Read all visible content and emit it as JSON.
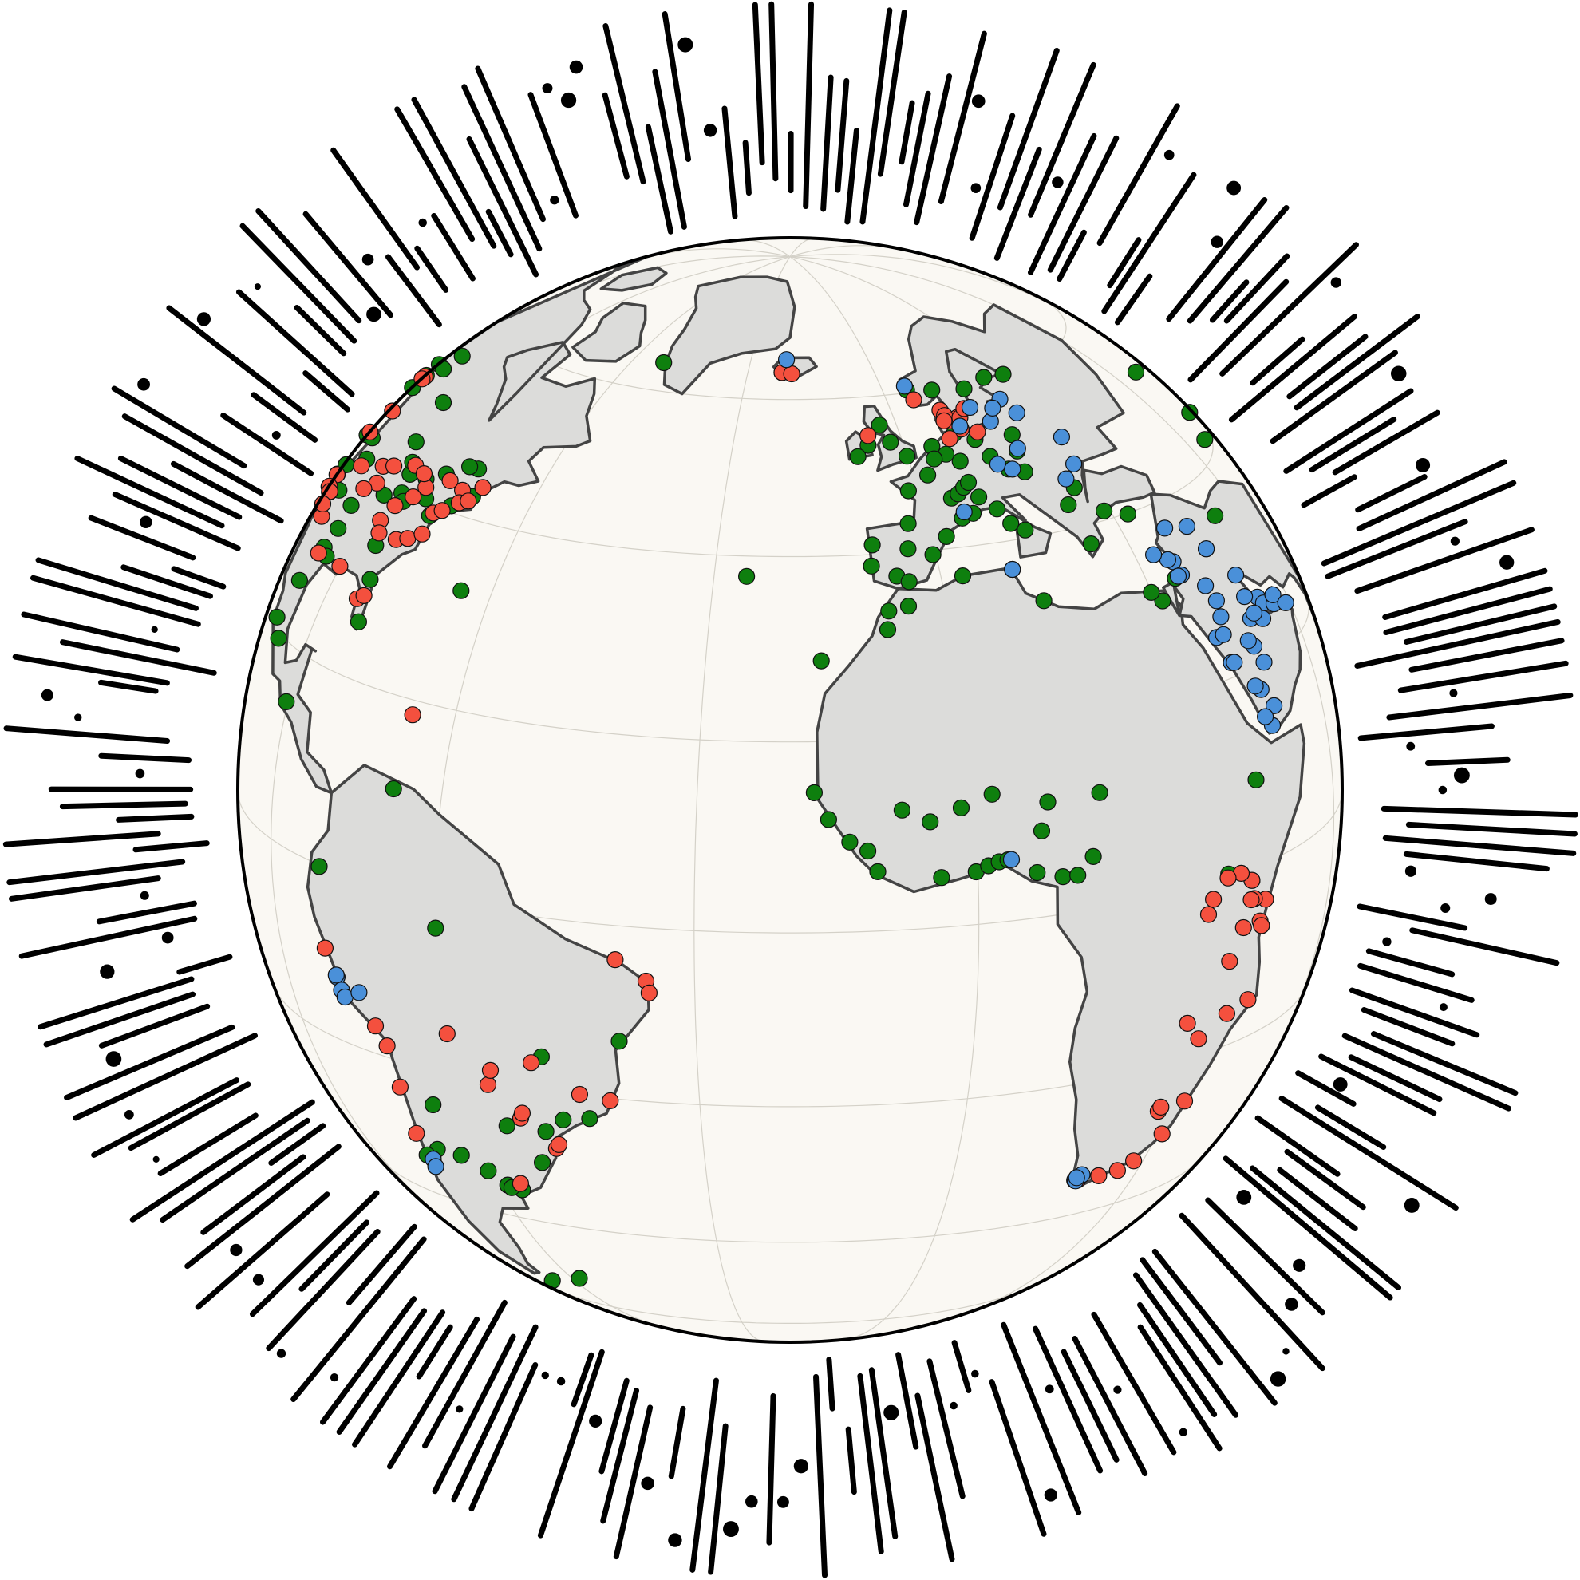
{
  "map": {
    "projection": "orthographic",
    "center": {
      "lon": -20,
      "lat": 15
    },
    "ocean_color": "#faf8f3",
    "land_color": "#dcdcda",
    "coast_color": "#444444",
    "ray_color": "#000000"
  },
  "legend_colors": {
    "red": "#f4503e",
    "green": "#0e7f0e",
    "blue": "#4a90d9"
  },
  "points": {
    "green": [
      [
        -122.4,
        47.6
      ],
      [
        -122.7,
        45.5
      ],
      [
        -121.5,
        38.6
      ],
      [
        -118.2,
        34.1
      ],
      [
        -117.2,
        32.7
      ],
      [
        -112.1,
        33.4
      ],
      [
        -111.9,
        40.8
      ],
      [
        -104.9,
        39.7
      ],
      [
        -97.7,
        30.3
      ],
      [
        -96.8,
        32.8
      ],
      [
        -95.4,
        29.8
      ],
      [
        -90.2,
        38.6
      ],
      [
        -87.6,
        41.9
      ],
      [
        -83.0,
        42.3
      ],
      [
        -93.3,
        45.0
      ],
      [
        -97.5,
        35.5
      ],
      [
        -106.6,
        35.1
      ],
      [
        -84.4,
        33.7
      ],
      [
        -81.7,
        30.3
      ],
      [
        -80.2,
        25.8
      ],
      [
        -77.0,
        38.9
      ],
      [
        -74.0,
        40.7
      ],
      [
        -71.1,
        42.4
      ],
      [
        -79.4,
        43.7
      ],
      [
        -73.6,
        45.5
      ],
      [
        -75.7,
        45.4
      ],
      [
        -89.4,
        43.1
      ],
      [
        -86.2,
        39.8
      ],
      [
        -84.5,
        39.1
      ],
      [
        -80.0,
        40.4
      ],
      [
        -115.1,
        36.2
      ],
      [
        -123.1,
        49.3
      ],
      [
        -114.1,
        51.0
      ],
      [
        -113.5,
        53.5
      ],
      [
        -97.1,
        49.9
      ],
      [
        -99.1,
        19.4
      ],
      [
        -103.3,
        20.7
      ],
      [
        -100.3,
        25.7
      ],
      [
        -90.5,
        14.6
      ],
      [
        -64.8,
        32.3
      ],
      [
        -47.9,
        -15.8
      ],
      [
        -38.5,
        -12.9
      ],
      [
        -43.2,
        -22.9
      ],
      [
        -46.6,
        -23.5
      ],
      [
        -51.2,
        -30.0
      ],
      [
        -49.3,
        -25.4
      ],
      [
        -54.6,
        -25.5
      ],
      [
        -56.2,
        -34.9
      ],
      [
        -58.4,
        -34.6
      ],
      [
        -57.9,
        -34.9
      ],
      [
        -60.6,
        -32.9
      ],
      [
        -64.2,
        -31.4
      ],
      [
        -68.5,
        -31.5
      ],
      [
        -65.4,
        -24.8
      ],
      [
        -66.9,
        10.5
      ],
      [
        -70.7,
        -33.4
      ],
      [
        -71.6,
        -33.0
      ],
      [
        -77.0,
        -12.0
      ],
      [
        -78.5,
        -0.2
      ],
      [
        -60.0,
        -3.1
      ],
      [
        -68.3,
        -54.8
      ],
      [
        -58.0,
        -51.7
      ],
      [
        -25.7,
        37.7
      ],
      [
        -16.3,
        28.5
      ],
      [
        -17.4,
        14.7
      ],
      [
        -15.9,
        11.9
      ],
      [
        -13.7,
        9.5
      ],
      [
        -11.8,
        8.5
      ],
      [
        -10.8,
        6.3
      ],
      [
        -8.0,
        12.6
      ],
      [
        -5.0,
        11.2
      ],
      [
        -4.0,
        5.3
      ],
      [
        -1.5,
        12.4
      ],
      [
        -0.2,
        5.6
      ],
      [
        1.2,
        6.1
      ],
      [
        2.4,
        6.4
      ],
      [
        2.1,
        13.5
      ],
      [
        3.4,
        6.5
      ],
      [
        7.5,
        9.1
      ],
      [
        8.5,
        12.0
      ],
      [
        9.7,
        4.0
      ],
      [
        13.5,
        5.6
      ],
      [
        15.0,
        12.1
      ],
      [
        11.5,
        3.9
      ],
      [
        6.7,
        4.8
      ],
      [
        -9.1,
        38.7
      ],
      [
        -8.6,
        41.1
      ],
      [
        -3.7,
        40.4
      ],
      [
        2.2,
        41.4
      ],
      [
        -0.4,
        39.5
      ],
      [
        -5.9,
        37.4
      ],
      [
        -4.4,
        36.7
      ],
      [
        -2.9,
        43.3
      ],
      [
        -1.6,
        47.2
      ],
      [
        2.3,
        48.9
      ],
      [
        4.8,
        45.8
      ],
      [
        5.4,
        43.3
      ],
      [
        7.3,
        43.7
      ],
      [
        6.1,
        46.2
      ],
      [
        7.4,
        46.9
      ],
      [
        8.5,
        47.4
      ],
      [
        9.2,
        45.5
      ],
      [
        11.3,
        43.8
      ],
      [
        12.5,
        41.9
      ],
      [
        14.3,
        40.9
      ],
      [
        16.4,
        48.2
      ],
      [
        14.4,
        50.1
      ],
      [
        13.4,
        52.5
      ],
      [
        10.0,
        53.6
      ],
      [
        8.7,
        50.1
      ],
      [
        6.8,
        51.2
      ],
      [
        4.9,
        52.4
      ],
      [
        4.4,
        50.8
      ],
      [
        -0.1,
        51.5
      ],
      [
        -2.2,
        53.5
      ],
      [
        -3.2,
        55.9
      ],
      [
        -6.3,
        53.3
      ],
      [
        -8.5,
        51.9
      ],
      [
        10.8,
        59.9
      ],
      [
        5.3,
        60.4
      ],
      [
        18.1,
        59.3
      ],
      [
        12.6,
        55.7
      ],
      [
        24.9,
        60.2
      ],
      [
        30.3,
        59.9
      ],
      [
        21.0,
        52.2
      ],
      [
        19.9,
        50.1
      ],
      [
        19.0,
        47.5
      ],
      [
        26.1,
        44.4
      ],
      [
        23.3,
        42.7
      ],
      [
        23.7,
        37.9
      ],
      [
        28.9,
        41.0
      ],
      [
        32.9,
        39.9
      ],
      [
        36.8,
        -1.3
      ],
      [
        39.3,
        -6.8
      ],
      [
        32.6,
        0.3
      ],
      [
        38.7,
        9.0
      ],
      [
        35.2,
        31.8
      ],
      [
        3.0,
        36.8
      ],
      [
        10.2,
        36.8
      ],
      [
        -7.6,
        33.6
      ],
      [
        -5.0,
        34.0
      ],
      [
        -8.0,
        31.6
      ],
      [
        13.2,
        32.9
      ],
      [
        31.2,
        30.0
      ],
      [
        29.9,
        31.2
      ],
      [
        44.4,
        33.3
      ],
      [
        51.4,
        35.7
      ],
      [
        69.2,
        41.3
      ],
      [
        71.4,
        51.2
      ],
      [
        76.9,
        43.2
      ],
      [
        -21.9,
        64.1
      ],
      [
        -51.7,
        64.2
      ]
    ],
    "red": [
      [
        -122.3,
        47.4
      ],
      [
        -122.4,
        37.8
      ],
      [
        -121.9,
        37.3
      ],
      [
        -118.3,
        34.0
      ],
      [
        -117.1,
        32.8
      ],
      [
        -112.0,
        33.5
      ],
      [
        -104.8,
        38.8
      ],
      [
        -96.7,
        40.8
      ],
      [
        -94.6,
        39.1
      ],
      [
        -93.6,
        41.6
      ],
      [
        -90.1,
        29.9
      ],
      [
        -88.0,
        43.0
      ],
      [
        -85.7,
        38.3
      ],
      [
        -86.8,
        36.2
      ],
      [
        -85.3,
        35.0
      ],
      [
        -82.5,
        27.9
      ],
      [
        -81.4,
        28.5
      ],
      [
        -80.8,
        35.2
      ],
      [
        -78.6,
        35.8
      ],
      [
        -76.3,
        36.8
      ],
      [
        -76.6,
        39.3
      ],
      [
        -75.2,
        39.9
      ],
      [
        -73.8,
        42.7
      ],
      [
        -72.9,
        41.3
      ],
      [
        -71.4,
        41.8
      ],
      [
        -70.3,
        43.7
      ],
      [
        -77.6,
        43.2
      ],
      [
        -81.7,
        41.5
      ],
      [
        -83.0,
        40.0
      ],
      [
        -84.4,
        42.7
      ],
      [
        -97.3,
        37.7
      ],
      [
        -98.5,
        29.4
      ],
      [
        -106.5,
        31.8
      ],
      [
        -110.9,
        32.2
      ],
      [
        -119.8,
        39.5
      ],
      [
        -116.2,
        43.6
      ],
      [
        -122.8,
        46.9
      ],
      [
        -66.1,
        18.5
      ],
      [
        -78.5,
        -9.1
      ],
      [
        -71.5,
        -16.4
      ],
      [
        -70.3,
        -18.5
      ],
      [
        -70.4,
        -23.6
      ],
      [
        -71.3,
        -29.9
      ],
      [
        -60.0,
        -15.0
      ],
      [
        -55.7,
        -20.4
      ],
      [
        -52.3,
        -24.1
      ],
      [
        -54.9,
        -18.5
      ],
      [
        -49.3,
        -16.7
      ],
      [
        -48.5,
        -27.6
      ],
      [
        -48.0,
        -27.0
      ],
      [
        -51.9,
        -23.4
      ],
      [
        -43.9,
        -19.9
      ],
      [
        -40.3,
        -20.3
      ],
      [
        -35.2,
        -5.8
      ],
      [
        -34.9,
        -7.1
      ],
      [
        -38.5,
        -3.7
      ],
      [
        -56.0,
        -33.9
      ],
      [
        39.7,
        -4.0
      ],
      [
        37.4,
        -3.4
      ],
      [
        36.8,
        -1.3
      ],
      [
        34.8,
        -0.1
      ],
      [
        32.5,
        -0.1
      ],
      [
        29.4,
        -3.4
      ],
      [
        33.8,
        -9.5
      ],
      [
        30.1,
        -1.9
      ],
      [
        35.7,
        -6.2
      ],
      [
        38.9,
        -6.2
      ],
      [
        39.3,
        -6.8
      ],
      [
        28.3,
        -15.4
      ],
      [
        31.0,
        -17.8
      ],
      [
        32.6,
        -25.9
      ],
      [
        28.0,
        -26.2
      ],
      [
        28.2,
        -25.7
      ],
      [
        31.0,
        -29.9
      ],
      [
        27.9,
        -33.0
      ],
      [
        25.6,
        -33.9
      ],
      [
        22.4,
        -34.0
      ],
      [
        18.4,
        -33.9
      ],
      [
        18.9,
        -33.9
      ],
      [
        36.8,
        -3.4
      ],
      [
        35.3,
        -15.8
      ],
      [
        39.2,
        -15.1
      ],
      [
        -21.9,
        64.1
      ],
      [
        -19.6,
        63.9
      ],
      [
        9.9,
        57.0
      ],
      [
        10.2,
        56.2
      ],
      [
        12.6,
        55.7
      ],
      [
        11.9,
        54.1
      ],
      [
        10.6,
        55.4
      ],
      [
        9.5,
        55.5
      ],
      [
        13.0,
        55.6
      ],
      [
        15.0,
        56.7
      ],
      [
        14.7,
        53.4
      ],
      [
        8.8,
        53.1
      ],
      [
        5.7,
        58.9
      ],
      [
        -5.9,
        54.6
      ]
    ],
    "blue": [
      [
        -20.9,
        66.2
      ],
      [
        5.3,
        61.0
      ],
      [
        16.4,
        56.7
      ],
      [
        12.0,
        54.5
      ],
      [
        18.6,
        54.4
      ],
      [
        24.1,
        56.9
      ],
      [
        25.3,
        54.7
      ],
      [
        21.0,
        56.0
      ],
      [
        15.0,
        49.0
      ],
      [
        17.1,
        48.1
      ],
      [
        20.3,
        50.4
      ],
      [
        30.5,
        50.4
      ],
      [
        28.9,
        47.0
      ],
      [
        25.6,
        45.6
      ],
      [
        6.0,
        44.0
      ],
      [
        10.2,
        36.8
      ],
      [
        36.3,
        33.5
      ],
      [
        35.5,
        33.9
      ],
      [
        39.2,
        21.5
      ],
      [
        46.7,
        24.7
      ],
      [
        50.6,
        26.2
      ],
      [
        51.5,
        25.3
      ],
      [
        54.4,
        24.5
      ],
      [
        55.3,
        25.3
      ],
      [
        58.4,
        23.6
      ],
      [
        47.9,
        29.4
      ],
      [
        44.4,
        33.3
      ],
      [
        43.1,
        36.3
      ],
      [
        45.4,
        15.4
      ],
      [
        44.0,
        13.6
      ],
      [
        42.9,
        14.8
      ],
      [
        43.5,
        17.6
      ],
      [
        39.8,
        21.4
      ],
      [
        38.1,
        24.5
      ],
      [
        42.5,
        18.2
      ],
      [
        40.5,
        26.3
      ],
      [
        49.6,
        24.0
      ],
      [
        48.0,
        25.0
      ],
      [
        46.0,
        20.0
      ],
      [
        45.0,
        22.0
      ],
      [
        41.0,
        28.0
      ],
      [
        39.6,
        24.5
      ],
      [
        36.6,
        31.9
      ],
      [
        35.9,
        31.9
      ],
      [
        33.4,
        34.9
      ],
      [
        38.3,
        37.1
      ],
      [
        40.2,
        29.9
      ],
      [
        44.2,
        22.8
      ],
      [
        47.5,
        27.0
      ],
      [
        -77.0,
        -12.0
      ],
      [
        -77.1,
        -11.8
      ],
      [
        -76.6,
        -13.4
      ],
      [
        -76.2,
        -14.1
      ],
      [
        -73.2,
        -12.9
      ],
      [
        -70.7,
        -33.4
      ],
      [
        -71.2,
        -34.6
      ],
      [
        18.4,
        -33.9
      ],
      [
        18.6,
        -34.0
      ],
      [
        19.2,
        -33.2
      ],
      [
        18.5,
        -33.5
      ],
      [
        3.8,
        6.5
      ]
    ]
  }
}
